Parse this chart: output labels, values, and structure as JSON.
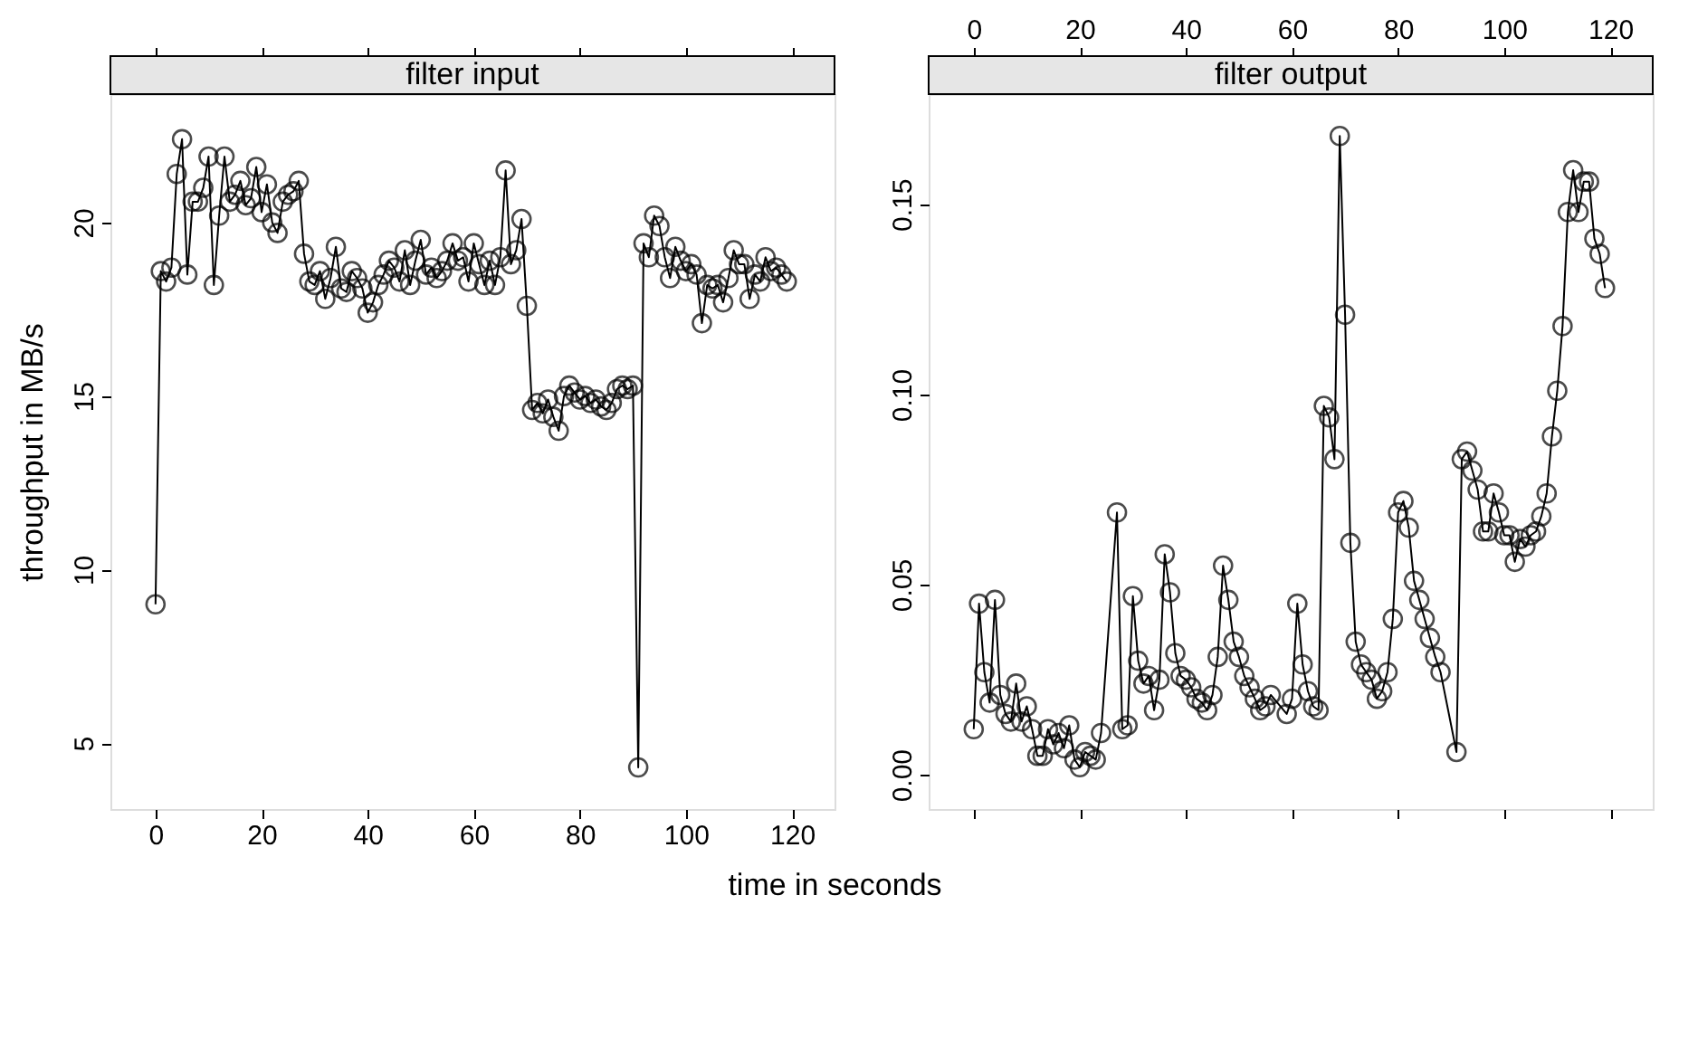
{
  "chart_data": [
    {
      "type": "line",
      "title": "filter input",
      "xlabel": "time in seconds",
      "ylabel": "throughput in MB/s",
      "marker": "circle",
      "x": [
        0,
        1,
        2,
        3,
        4,
        5,
        6,
        7,
        8,
        9,
        10,
        11,
        12,
        13,
        14,
        15,
        16,
        17,
        18,
        19,
        20,
        21,
        22,
        23,
        24,
        25,
        26,
        27,
        28,
        29,
        30,
        31,
        32,
        33,
        34,
        35,
        36,
        37,
        38,
        39,
        40,
        41,
        42,
        43,
        44,
        45,
        46,
        47,
        48,
        49,
        50,
        51,
        52,
        53,
        54,
        55,
        56,
        57,
        58,
        59,
        60,
        61,
        62,
        63,
        64,
        65,
        66,
        67,
        68,
        69,
        70,
        71,
        72,
        73,
        74,
        75,
        76,
        77,
        78,
        79,
        80,
        81,
        82,
        83,
        84,
        85,
        86,
        87,
        88,
        89,
        90,
        91,
        92,
        93,
        94,
        95,
        96,
        97,
        98,
        99,
        100,
        101,
        102,
        103,
        104,
        105,
        106,
        107,
        108,
        109,
        110,
        111,
        112,
        113,
        114,
        115,
        116,
        117,
        118,
        119
      ],
      "series": [
        {
          "color": "#000000",
          "values": [
            9.0,
            18.6,
            18.3,
            18.7,
            21.4,
            22.4,
            18.5,
            20.6,
            20.6,
            21.0,
            21.9,
            18.2,
            20.2,
            21.9,
            20.6,
            20.8,
            21.2,
            20.5,
            20.7,
            21.6,
            20.3,
            21.1,
            20.0,
            19.7,
            20.6,
            20.8,
            20.9,
            21.2,
            19.1,
            18.3,
            18.2,
            18.6,
            17.8,
            18.4,
            19.3,
            18.1,
            18.0,
            18.6,
            18.4,
            18.1,
            17.4,
            17.7,
            18.2,
            18.5,
            18.9,
            18.7,
            18.3,
            19.2,
            18.2,
            18.9,
            19.5,
            18.5,
            18.7,
            18.4,
            18.6,
            18.9,
            19.4,
            18.9,
            19.0,
            18.3,
            19.4,
            18.8,
            18.2,
            18.9,
            18.2,
            19.0,
            21.5,
            18.8,
            19.2,
            20.1,
            17.6,
            14.6,
            14.8,
            14.5,
            14.9,
            14.4,
            14.0,
            15.0,
            15.3,
            15.1,
            14.9,
            15.0,
            14.8,
            14.9,
            14.7,
            14.6,
            14.8,
            15.2,
            15.3,
            15.2,
            15.3,
            4.3,
            19.4,
            19.0,
            20.2,
            19.9,
            19.0,
            18.4,
            19.3,
            18.9,
            18.6,
            18.8,
            18.5,
            17.1,
            18.2,
            18.1,
            18.2,
            17.7,
            18.4,
            19.2,
            18.8,
            18.8,
            17.8,
            18.5,
            18.3,
            19.0,
            18.6,
            18.7,
            18.5,
            18.3
          ]
        }
      ],
      "xlim": [
        -8.5,
        128
      ],
      "xticks": [
        0,
        20,
        40,
        60,
        80,
        100,
        120
      ],
      "ylim": [
        3.1,
        23.7
      ],
      "yticks": [
        5,
        10,
        15,
        20
      ]
    },
    {
      "type": "line",
      "title": "filter output",
      "marker": "circle",
      "x": [
        0,
        1,
        2,
        3,
        4,
        5,
        6,
        7,
        8,
        9,
        10,
        11,
        12,
        13,
        14,
        15,
        16,
        17,
        18,
        19,
        20,
        21,
        22,
        23,
        24,
        27,
        28,
        29,
        30,
        31,
        32,
        33,
        34,
        35,
        36,
        37,
        38,
        39,
        40,
        41,
        42,
        43,
        44,
        45,
        46,
        47,
        48,
        49,
        50,
        51,
        52,
        53,
        54,
        55,
        56,
        59,
        60,
        61,
        62,
        63,
        64,
        65,
        66,
        67,
        68,
        69,
        70,
        71,
        72,
        73,
        74,
        75,
        76,
        77,
        78,
        79,
        80,
        81,
        82,
        83,
        84,
        85,
        86,
        87,
        88,
        91,
        92,
        93,
        94,
        95,
        96,
        97,
        98,
        99,
        100,
        101,
        102,
        103,
        104,
        105,
        106,
        107,
        108,
        109,
        110,
        111,
        112,
        113,
        114,
        115,
        116,
        117,
        118,
        119
      ],
      "series": [
        {
          "color": "#000000",
          "values": [
            0.012,
            0.045,
            0.027,
            0.019,
            0.046,
            0.021,
            0.016,
            0.014,
            0.024,
            0.014,
            0.018,
            0.012,
            0.005,
            0.005,
            0.012,
            0.008,
            0.011,
            0.007,
            0.013,
            0.004,
            0.002,
            0.006,
            0.005,
            0.004,
            0.011,
            0.069,
            0.012,
            0.013,
            0.047,
            0.03,
            0.024,
            0.026,
            0.017,
            0.025,
            0.058,
            0.048,
            0.032,
            0.026,
            0.025,
            0.023,
            0.02,
            0.019,
            0.017,
            0.021,
            0.031,
            0.055,
            0.046,
            0.035,
            0.031,
            0.026,
            0.023,
            0.02,
            0.017,
            0.018,
            0.021,
            0.016,
            0.02,
            0.045,
            0.029,
            0.022,
            0.018,
            0.017,
            0.097,
            0.094,
            0.083,
            0.168,
            0.121,
            0.061,
            0.035,
            0.029,
            0.027,
            0.025,
            0.02,
            0.022,
            0.027,
            0.041,
            0.069,
            0.072,
            0.065,
            0.051,
            0.046,
            0.041,
            0.036,
            0.031,
            0.027,
            0.006,
            0.083,
            0.085,
            0.08,
            0.075,
            0.064,
            0.064,
            0.074,
            0.069,
            0.063,
            0.063,
            0.056,
            0.062,
            0.06,
            0.063,
            0.064,
            0.068,
            0.074,
            0.089,
            0.101,
            0.118,
            0.148,
            0.159,
            0.148,
            0.156,
            0.156,
            0.141,
            0.137,
            0.128
          ]
        }
      ],
      "xlim": [
        -8.5,
        128
      ],
      "x2lim": [
        -8.5,
        128
      ],
      "x2ticks": [
        0,
        20,
        40,
        60,
        80,
        100,
        120
      ],
      "ylim": [
        -0.009,
        0.179
      ],
      "yticks": [
        {
          "value": 0,
          "label": "0.00"
        },
        0.05,
        {
          "value": 0.1,
          "label": "0.10"
        },
        0.15
      ]
    }
  ]
}
